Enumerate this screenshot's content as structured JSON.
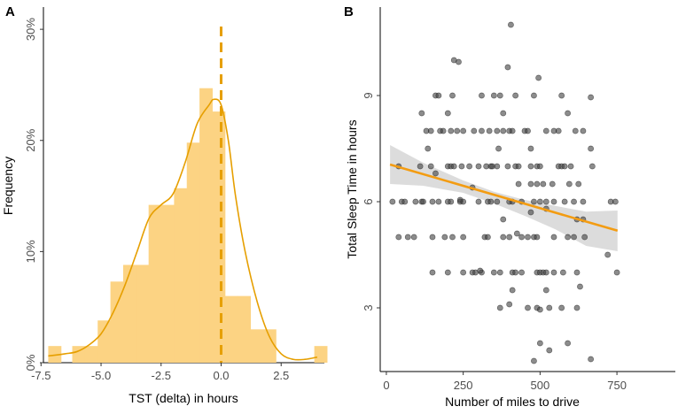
{
  "chart_data": [
    {
      "panel": "A",
      "type": "bar",
      "subtype": "histogram-with-density",
      "xlabel": "TST (delta) in hours",
      "ylabel": "Frequency",
      "xlim": [
        -7.4,
        4.3
      ],
      "ylim": [
        0,
        0.32
      ],
      "xticks": [
        -7.5,
        -5.0,
        -2.5,
        0.0,
        2.5
      ],
      "xtick_labels": [
        "-7.5",
        "-5.0",
        "-2.5",
        "0.0",
        "2.5"
      ],
      "yticks": [
        0,
        0.1,
        0.2,
        0.3
      ],
      "ytick_labels": [
        "0%",
        "10%",
        "20%",
        "30%"
      ],
      "bin_width": 0.53,
      "bins": [
        {
          "x0": -7.2,
          "value": 0.015
        },
        {
          "x0": -6.2,
          "value": 0.015
        },
        {
          "x0": -5.67,
          "value": 0.015
        },
        {
          "x0": -5.14,
          "value": 0.038
        },
        {
          "x0": -4.61,
          "value": 0.073
        },
        {
          "x0": -4.08,
          "value": 0.088
        },
        {
          "x0": -3.55,
          "value": 0.088
        },
        {
          "x0": -3.02,
          "value": 0.142
        },
        {
          "x0": -2.49,
          "value": 0.142
        },
        {
          "x0": -1.96,
          "value": 0.157
        },
        {
          "x0": -1.43,
          "value": 0.198
        },
        {
          "x0": -0.9,
          "value": 0.247
        },
        {
          "x0": -0.37,
          "value": 0.226
        },
        {
          "x0": 0.16,
          "value": 0.06
        },
        {
          "x0": 0.69,
          "value": 0.06
        },
        {
          "x0": 1.22,
          "value": 0.03
        },
        {
          "x0": 1.75,
          "value": 0.03
        },
        {
          "x0": 3.88,
          "value": 0.015
        }
      ],
      "density": {
        "x": [
          -7.2,
          -6.5,
          -6.0,
          -5.5,
          -5.0,
          -4.5,
          -4.0,
          -3.5,
          -3.0,
          -2.5,
          -2.0,
          -1.5,
          -1.0,
          -0.5,
          -0.3,
          0.0,
          0.3,
          0.6,
          1.0,
          1.5,
          2.0,
          2.5,
          3.0,
          3.5,
          4.0
        ],
        "y": [
          0.006,
          0.008,
          0.01,
          0.016,
          0.026,
          0.045,
          0.07,
          0.1,
          0.13,
          0.142,
          0.152,
          0.18,
          0.215,
          0.232,
          0.237,
          0.232,
          0.2,
          0.15,
          0.1,
          0.055,
          0.024,
          0.008,
          0.003,
          0.003,
          0.005
        ]
      },
      "reference_line": {
        "x": 0,
        "style": "dashed"
      },
      "colors": {
        "bars": "#fcd383",
        "density": "#e69f00",
        "refline": "#e69f00"
      }
    },
    {
      "panel": "B",
      "type": "scatter",
      "xlabel": "Number of miles to drive",
      "ylabel": "Total Sleep Time in hours",
      "xlim": [
        -20,
        940
      ],
      "ylim": [
        1.2,
        11.5
      ],
      "xticks": [
        0,
        250,
        500,
        750
      ],
      "xtick_labels": [
        "0",
        "250",
        "500",
        "750"
      ],
      "yticks": [
        3,
        6,
        9
      ],
      "ytick_labels": [
        "3",
        "6",
        "9"
      ],
      "regression": {
        "x0": 12,
        "y0": 7.05,
        "x1": 752,
        "y1": 5.18
      },
      "ci_band": [
        {
          "x": 12,
          "lo": 6.5,
          "hi": 7.6
        },
        {
          "x": 120,
          "lo": 6.45,
          "hi": 7.1
        },
        {
          "x": 250,
          "lo": 6.25,
          "hi": 6.6
        },
        {
          "x": 350,
          "lo": 5.95,
          "hi": 6.28
        },
        {
          "x": 450,
          "lo": 5.6,
          "hi": 6.05
        },
        {
          "x": 550,
          "lo": 5.22,
          "hi": 5.88
        },
        {
          "x": 650,
          "lo": 4.75,
          "hi": 5.72
        },
        {
          "x": 752,
          "lo": 4.6,
          "hi": 5.75
        }
      ],
      "points": [
        [
          405,
          11
        ],
        [
          220,
          10
        ],
        [
          235,
          9.95
        ],
        [
          395,
          9.8
        ],
        [
          495,
          9.5
        ],
        [
          160,
          9
        ],
        [
          170,
          9
        ],
        [
          215,
          9
        ],
        [
          310,
          9
        ],
        [
          350,
          9
        ],
        [
          370,
          9
        ],
        [
          420,
          9
        ],
        [
          480,
          9
        ],
        [
          570,
          9
        ],
        [
          665,
          8.95
        ],
        [
          115,
          8.5
        ],
        [
          200,
          8.5
        ],
        [
          380,
          8.5
        ],
        [
          590,
          8.5
        ],
        [
          130,
          8
        ],
        [
          145,
          8
        ],
        [
          175,
          8
        ],
        [
          185,
          8
        ],
        [
          210,
          8
        ],
        [
          230,
          8
        ],
        [
          250,
          8
        ],
        [
          285,
          8
        ],
        [
          310,
          8
        ],
        [
          335,
          8
        ],
        [
          360,
          8
        ],
        [
          380,
          8
        ],
        [
          400,
          8
        ],
        [
          410,
          8
        ],
        [
          450,
          8
        ],
        [
          460,
          8
        ],
        [
          520,
          8
        ],
        [
          545,
          8
        ],
        [
          560,
          8
        ],
        [
          615,
          8
        ],
        [
          640,
          8
        ],
        [
          665,
          7.5
        ],
        [
          135,
          7.5
        ],
        [
          365,
          7.5
        ],
        [
          470,
          7.5
        ],
        [
          40,
          7
        ],
        [
          110,
          7
        ],
        [
          145,
          7
        ],
        [
          200,
          7
        ],
        [
          210,
          7
        ],
        [
          220,
          7
        ],
        [
          245,
          7
        ],
        [
          270,
          7
        ],
        [
          300,
          7
        ],
        [
          325,
          7
        ],
        [
          340,
          7
        ],
        [
          345,
          7
        ],
        [
          360,
          7
        ],
        [
          395,
          7
        ],
        [
          420,
          7
        ],
        [
          430,
          7
        ],
        [
          470,
          7
        ],
        [
          490,
          7
        ],
        [
          500,
          7
        ],
        [
          560,
          7
        ],
        [
          570,
          7
        ],
        [
          580,
          7
        ],
        [
          600,
          7
        ],
        [
          670,
          7
        ],
        [
          160,
          6.8
        ],
        [
          430,
          6.5
        ],
        [
          470,
          6.5
        ],
        [
          490,
          6.5
        ],
        [
          510,
          6.5
        ],
        [
          540,
          6.5
        ],
        [
          595,
          6.5
        ],
        [
          625,
          6.5
        ],
        [
          280,
          6.4
        ],
        [
          20,
          6
        ],
        [
          50,
          6
        ],
        [
          60,
          6
        ],
        [
          95,
          6
        ],
        [
          115,
          6
        ],
        [
          120,
          6
        ],
        [
          150,
          6
        ],
        [
          170,
          6
        ],
        [
          200,
          6
        ],
        [
          210,
          6
        ],
        [
          240,
          6
        ],
        [
          250,
          6
        ],
        [
          300,
          6
        ],
        [
          330,
          6
        ],
        [
          340,
          6
        ],
        [
          360,
          6
        ],
        [
          400,
          6
        ],
        [
          410,
          6
        ],
        [
          440,
          6
        ],
        [
          480,
          6
        ],
        [
          500,
          6
        ],
        [
          520,
          6
        ],
        [
          545,
          6
        ],
        [
          580,
          6
        ],
        [
          610,
          6
        ],
        [
          640,
          6
        ],
        [
          730,
          6
        ],
        [
          745,
          6
        ],
        [
          470,
          5.7
        ],
        [
          520,
          5.8
        ],
        [
          380,
          5.5
        ],
        [
          620,
          5.5
        ],
        [
          640,
          5.5
        ],
        [
          40,
          5
        ],
        [
          70,
          5
        ],
        [
          90,
          5
        ],
        [
          150,
          5
        ],
        [
          190,
          5
        ],
        [
          215,
          5
        ],
        [
          250,
          5
        ],
        [
          320,
          5
        ],
        [
          330,
          5
        ],
        [
          380,
          5
        ],
        [
          400,
          5
        ],
        [
          440,
          5
        ],
        [
          460,
          5
        ],
        [
          480,
          5
        ],
        [
          490,
          5
        ],
        [
          545,
          5
        ],
        [
          590,
          5
        ],
        [
          610,
          5
        ],
        [
          645,
          5
        ],
        [
          720,
          4.5
        ],
        [
          150,
          4
        ],
        [
          200,
          4
        ],
        [
          250,
          4
        ],
        [
          280,
          4
        ],
        [
          290,
          4
        ],
        [
          310,
          4
        ],
        [
          350,
          4
        ],
        [
          370,
          4
        ],
        [
          410,
          4
        ],
        [
          420,
          4
        ],
        [
          440,
          4
        ],
        [
          490,
          4
        ],
        [
          500,
          4
        ],
        [
          510,
          4
        ],
        [
          520,
          4
        ],
        [
          545,
          4
        ],
        [
          575,
          4
        ],
        [
          620,
          4
        ],
        [
          750,
          4
        ],
        [
          410,
          3.5
        ],
        [
          520,
          3.5
        ],
        [
          630,
          3.6
        ],
        [
          370,
          3
        ],
        [
          400,
          3.1
        ],
        [
          460,
          3
        ],
        [
          490,
          3
        ],
        [
          500,
          2.95
        ],
        [
          530,
          3
        ],
        [
          570,
          3
        ],
        [
          620,
          3
        ],
        [
          500,
          2
        ],
        [
          530,
          1.8
        ],
        [
          590,
          2
        ],
        [
          480,
          1.5
        ],
        [
          665,
          1.55
        ],
        [
          240,
          6.05
        ],
        [
          305,
          4.05
        ],
        [
          425,
          5.1
        ]
      ],
      "colors": {
        "points": "#3f3f3f",
        "regression": "#f39c12",
        "ci": "#d6d6d6"
      }
    }
  ]
}
